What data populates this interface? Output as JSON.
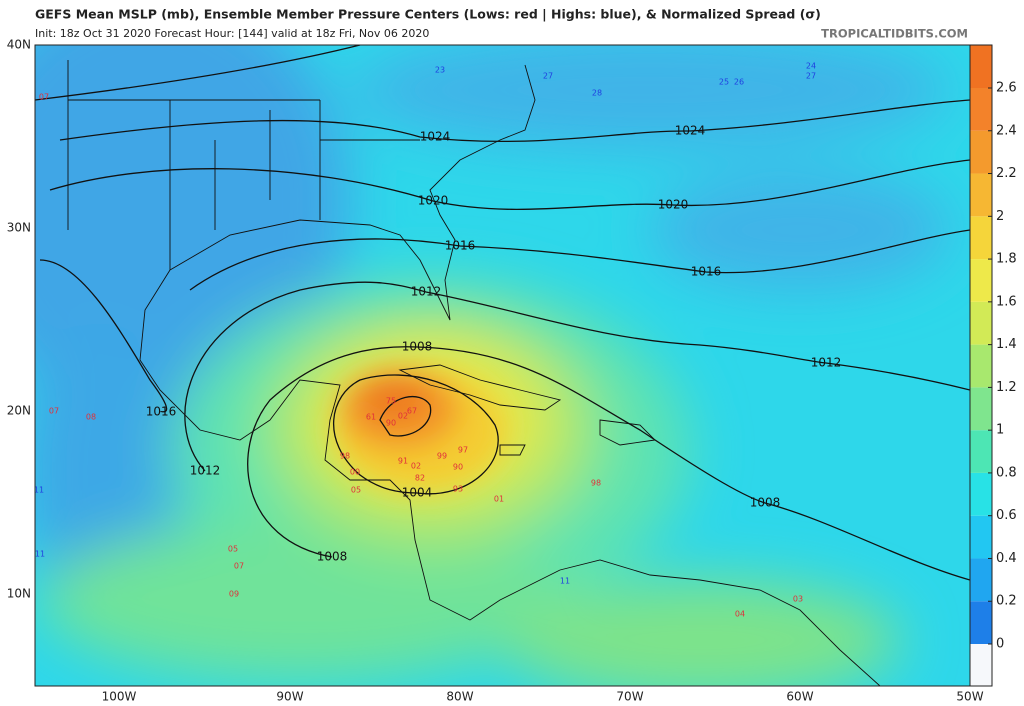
{
  "header": {
    "title": "GEFS Mean MSLP (mb), Ensemble Member Pressure Centers (Lows: red | Highs: blue), & Normalized Spread (σ)",
    "subtitle": "Init: 18z Oct 31 2020   Forecast Hour: [144]   valid at 18z Fri, Nov 06 2020",
    "credit": "TROPICALTIDBITS.COM"
  },
  "map": {
    "lat_labels": [
      "40N",
      "30N",
      "20N",
      "10N"
    ],
    "lon_labels": [
      "100W",
      "90W",
      "80W",
      "70W",
      "60W",
      "50W"
    ],
    "contour_labels": [
      "1024",
      "1024",
      "1020",
      "1020",
      "1016",
      "1016",
      "1016",
      "1012",
      "1012",
      "1012",
      "1008",
      "1008",
      "1008",
      "1004"
    ],
    "low_centers": [
      "75",
      "61",
      "67",
      "90",
      "02",
      "97",
      "99",
      "90",
      "93",
      "98",
      "01",
      "98",
      "05",
      "07",
      "09",
      "07",
      "08",
      "07",
      "91",
      "02",
      "82",
      "00",
      "05",
      "03",
      "04"
    ],
    "high_centers": [
      "11",
      "11",
      "24",
      "27",
      "25",
      "26",
      "28",
      "11",
      "23",
      "27"
    ]
  },
  "colorbar": {
    "ticks": [
      0,
      0.2,
      0.4,
      0.6,
      0.8,
      1,
      1.2,
      1.4,
      1.6,
      1.8,
      2,
      2.2,
      2.4,
      2.6
    ]
  }
}
